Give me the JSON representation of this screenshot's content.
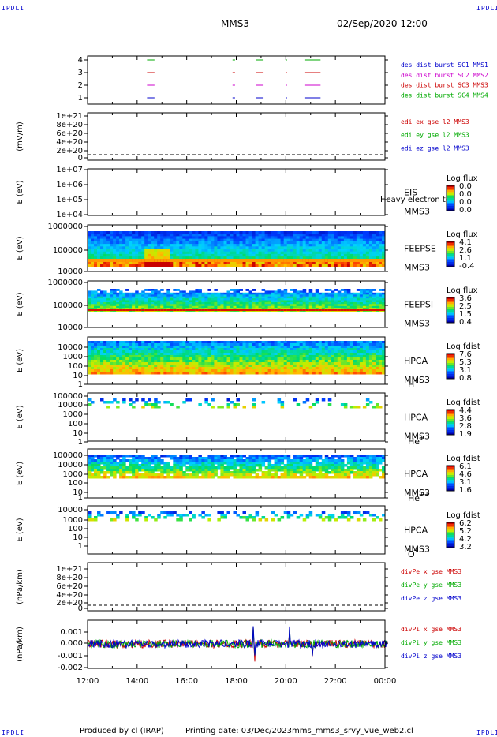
{
  "header": {
    "mission": "MMS3",
    "datetime": "02/Sep/2020 12:00",
    "corner_label": "IPDLI"
  },
  "footer": {
    "produced_by": "Produced by cl (IRAP)",
    "printing_date": "Printing date: 03/Dec/2023",
    "filename": "mms_mms3_srvy_vue_web2.cl"
  },
  "chart_data": [
    {
      "type": "timeline",
      "title": "burst",
      "ytick_labels": [
        "4",
        "3",
        "2",
        "1"
      ],
      "legend": [
        {
          "name": "des dist burst SC1 MMS1",
          "color": "#0000cc"
        },
        {
          "name": "des dist burst SC2 MMS2",
          "color": "#cc00cc"
        },
        {
          "name": "des dist burst SC3 MMS3",
          "color": "#cc0000"
        },
        {
          "name": "des dist burst SC4 MMS4",
          "color": "#00aa00"
        }
      ],
      "intervals": [
        [
          14.4,
          14.7
        ],
        [
          17.85,
          17.95
        ],
        [
          18.8,
          19.1
        ],
        [
          20.0,
          20.05
        ],
        [
          20.75,
          21.4
        ]
      ]
    },
    {
      "type": "line",
      "ylabel": "(mV/m)",
      "ytick_labels": [
        "1e+21",
        "8e+20",
        "6e+20",
        "4e+20",
        "2e+20",
        "0"
      ],
      "legend": [
        {
          "name": "edi ex gse l2 MMS3",
          "color": "#cc0000"
        },
        {
          "name": "edi ey gse l2 MMS3",
          "color": "#00aa00"
        },
        {
          "name": "edi ez gse l2 MMS3",
          "color": "#0000cc"
        }
      ]
    },
    {
      "type": "heatmap",
      "ylabel": "E (eV)",
      "ytick_labels": [
        "1e+07",
        "1e+06",
        "1e+05",
        "1e+04"
      ],
      "instrument": "EIS",
      "spacecraft": "MMS3",
      "overlay": "Heavy electron to",
      "colorbar": {
        "title": "Log flux",
        "ticks": [
          "0.0",
          "0.0",
          "0.0",
          "0.0"
        ]
      }
    },
    {
      "type": "heatmap",
      "ylabel": "E (eV)",
      "ytick_labels": [
        "1000000",
        "100000",
        "10000"
      ],
      "instrument": "FEEPSE",
      "spacecraft": "MMS3",
      "colorbar": {
        "title": "Log flux",
        "ticks": [
          "4.1",
          "2.6",
          "1.1",
          "-0.4"
        ]
      }
    },
    {
      "type": "heatmap",
      "ylabel": "E (eV)",
      "ytick_labels": [
        "1000000",
        "100000",
        "10000"
      ],
      "instrument": "FEEPSI",
      "spacecraft": "MMS3",
      "colorbar": {
        "title": "Log flux",
        "ticks": [
          "3.6",
          "2.5",
          "1.5",
          "0.4"
        ]
      }
    },
    {
      "type": "heatmap",
      "ylabel": "E (eV)",
      "ytick_labels": [
        "10000",
        "1000",
        "100",
        "10",
        "1"
      ],
      "instrument": "HPCA",
      "spacecraft": "MMS3",
      "species": "H",
      "species_sup": "+",
      "colorbar": {
        "title": "Log fdist",
        "ticks": [
          "7.6",
          "5.3",
          "3.1",
          "0.8"
        ]
      }
    },
    {
      "type": "heatmap",
      "ylabel": "E (eV)",
      "ytick_labels": [
        "100000",
        "10000",
        "1000",
        "100",
        "10",
        "1"
      ],
      "instrument": "HPCA",
      "spacecraft": "MMS3",
      "species": "He",
      "species_sup": "+",
      "colorbar": {
        "title": "Log fdist",
        "ticks": [
          "4.4",
          "3.6",
          "2.8",
          "1.9"
        ]
      }
    },
    {
      "type": "heatmap",
      "ylabel": "E (eV)",
      "ytick_labels": [
        "100000",
        "10000",
        "1000",
        "100",
        "10",
        "1"
      ],
      "instrument": "HPCA",
      "spacecraft": "MMS3",
      "species": "He",
      "species_sup": "++",
      "colorbar": {
        "title": "Log fdist",
        "ticks": [
          "6.1",
          "4.6",
          "3.1",
          "1.6"
        ]
      }
    },
    {
      "type": "heatmap",
      "ylabel": "E (eV)",
      "ytick_labels": [
        "10000",
        "1000",
        "100",
        "10",
        "1"
      ],
      "instrument": "HPCA",
      "spacecraft": "MMS3",
      "species": "O",
      "species_sup": "+",
      "colorbar": {
        "title": "Log fdist",
        "ticks": [
          "6.2",
          "5.2",
          "4.2",
          "3.2"
        ]
      }
    },
    {
      "type": "line",
      "ylabel": "(nPa/km)",
      "ytick_labels": [
        "1e+21",
        "8e+20",
        "6e+20",
        "4e+20",
        "2e+20",
        "0"
      ],
      "legend": [
        {
          "name": "divPe x gse MMS3",
          "color": "#cc0000"
        },
        {
          "name": "divPe y gse MMS3",
          "color": "#00aa00"
        },
        {
          "name": "divPe z gse MMS3",
          "color": "#0000cc"
        }
      ]
    },
    {
      "type": "line",
      "ylabel": "(nPa/km)",
      "ytick_labels": [
        "0.001",
        "0.000",
        "-0.001",
        "-0.002"
      ],
      "legend": [
        {
          "name": "divPi x gse MMS3",
          "color": "#cc0000"
        },
        {
          "name": "divPi y gse MMS3",
          "color": "#00aa00"
        },
        {
          "name": "divPi z gse MMS3",
          "color": "#0000cc"
        }
      ]
    }
  ],
  "xaxis": {
    "tick_labels": [
      "12:00",
      "14:00",
      "16:00",
      "18:00",
      "20:00",
      "22:00",
      "00:00"
    ],
    "range_hours": [
      12,
      24
    ]
  }
}
